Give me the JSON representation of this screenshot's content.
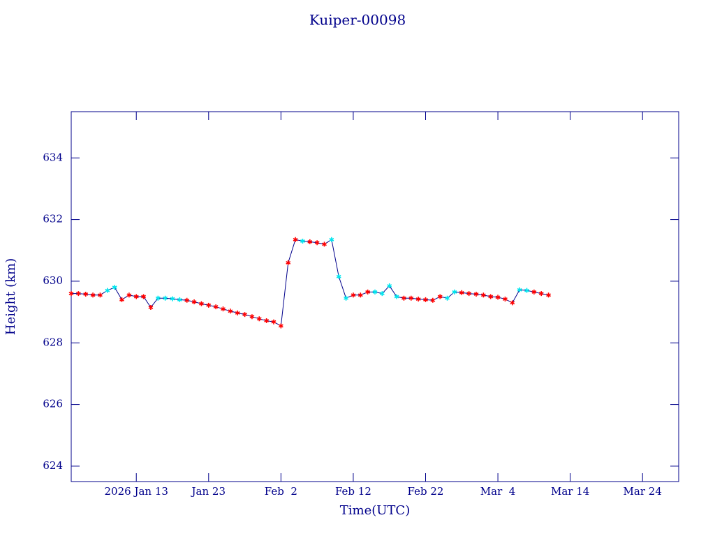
{
  "chart_data": {
    "type": "line",
    "title": "Kuiper-00098",
    "xlabel": "Time(UTC)",
    "ylabel": "Height (km)",
    "x": [
      "2026-01-04",
      "2026-01-05",
      "2026-01-06",
      "2026-01-07",
      "2026-01-08",
      "2026-01-09",
      "2026-01-10",
      "2026-01-11",
      "2026-01-12",
      "2026-01-13",
      "2026-01-14",
      "2026-01-15",
      "2026-01-16",
      "2026-01-17",
      "2026-01-18",
      "2026-01-19",
      "2026-01-20",
      "2026-01-21",
      "2026-01-22",
      "2026-01-23",
      "2026-01-24",
      "2026-01-25",
      "2026-01-26",
      "2026-01-27",
      "2026-01-28",
      "2026-01-29",
      "2026-01-30",
      "2026-01-31",
      "2026-02-01",
      "2026-02-02",
      "2026-02-03",
      "2026-02-04",
      "2026-02-05",
      "2026-02-06",
      "2026-02-07",
      "2026-02-08",
      "2026-02-09",
      "2026-02-10",
      "2026-02-11",
      "2026-02-12",
      "2026-02-13",
      "2026-02-14",
      "2026-02-15",
      "2026-02-16",
      "2026-02-17",
      "2026-02-18",
      "2026-02-19",
      "2026-02-20",
      "2026-02-21",
      "2026-02-22",
      "2026-02-23",
      "2026-02-24",
      "2026-02-25",
      "2026-02-26",
      "2026-02-27",
      "2026-02-28",
      "2026-03-01",
      "2026-03-02",
      "2026-03-03",
      "2026-03-04",
      "2026-03-05",
      "2026-03-06",
      "2026-03-07",
      "2026-03-08",
      "2026-03-09",
      "2026-03-10",
      "2026-03-11"
    ],
    "series": [
      {
        "color": "#00008b",
        "marker_color": "#ff0000",
        "values": [
          629.6,
          629.6,
          629.58,
          629.55,
          629.55,
          629.7,
          629.8,
          629.4,
          629.55,
          629.5,
          629.5,
          629.15,
          629.45,
          629.45,
          629.43,
          629.4,
          629.38,
          629.33,
          629.27,
          629.22,
          629.17,
          629.1,
          629.03,
          628.97,
          628.92,
          628.85,
          628.78,
          628.72,
          628.68,
          628.55,
          630.6,
          631.35,
          631.3,
          631.28,
          631.25,
          631.2,
          631.35,
          630.15,
          629.45,
          629.55,
          629.55,
          629.65,
          629.65,
          629.6,
          629.85,
          629.5,
          629.45,
          629.45,
          629.42,
          629.4,
          629.38,
          629.5,
          629.45,
          629.65,
          629.63,
          629.6,
          629.58,
          629.55,
          629.5,
          629.48,
          629.42,
          629.3,
          629.72,
          629.7,
          629.65,
          629.6,
          629.55
        ],
        "point_colors": [
          "#ff0000",
          "#ff0000",
          "#ff0000",
          "#ff0000",
          "#ff0000",
          "#00e5ee",
          "#00e5ee",
          "#ff0000",
          "#ff0000",
          "#ff0000",
          "#ff0000",
          "#ff0000",
          "#00e5ee",
          "#00e5ee",
          "#00e5ee",
          "#00e5ee",
          "#ff0000",
          "#ff0000",
          "#ff0000",
          "#ff0000",
          "#ff0000",
          "#ff0000",
          "#ff0000",
          "#ff0000",
          "#ff0000",
          "#ff0000",
          "#ff0000",
          "#ff0000",
          "#ff0000",
          "#ff0000",
          "#ff0000",
          "#ff0000",
          "#00e5ee",
          "#ff0000",
          "#ff0000",
          "#ff0000",
          "#00e5ee",
          "#00e5ee",
          "#00e5ee",
          "#ff0000",
          "#ff0000",
          "#ff0000",
          "#00e5ee",
          "#00e5ee",
          "#00e5ee",
          "#00e5ee",
          "#ff0000",
          "#ff0000",
          "#ff0000",
          "#ff0000",
          "#ff0000",
          "#ff0000",
          "#00e5ee",
          "#00e5ee",
          "#ff0000",
          "#ff0000",
          "#ff0000",
          "#ff0000",
          "#ff0000",
          "#ff0000",
          "#ff0000",
          "#ff0000",
          "#00e5ee",
          "#00e5ee",
          "#ff0000",
          "#ff0000",
          "#ff0000"
        ]
      }
    ],
    "xlim": [
      "2026-01-04",
      "2026-03-29"
    ],
    "xticks": [
      {
        "value": "2026-01-13",
        "label": "2026 Jan 13"
      },
      {
        "value": "2026-01-23",
        "label": "Jan 23"
      },
      {
        "value": "2026-02-02",
        "label": "Feb  2"
      },
      {
        "value": "2026-02-12",
        "label": "Feb 12"
      },
      {
        "value": "2026-02-22",
        "label": "Feb 22"
      },
      {
        "value": "2026-03-04",
        "label": "Mar  4"
      },
      {
        "value": "2026-03-14",
        "label": "Mar 14"
      },
      {
        "value": "2026-03-24",
        "label": "Mar 24"
      }
    ],
    "ylim": [
      623.5,
      635.5
    ],
    "yticks": [
      624,
      626,
      628,
      630,
      632,
      634
    ],
    "axis_color": "#00008b"
  }
}
